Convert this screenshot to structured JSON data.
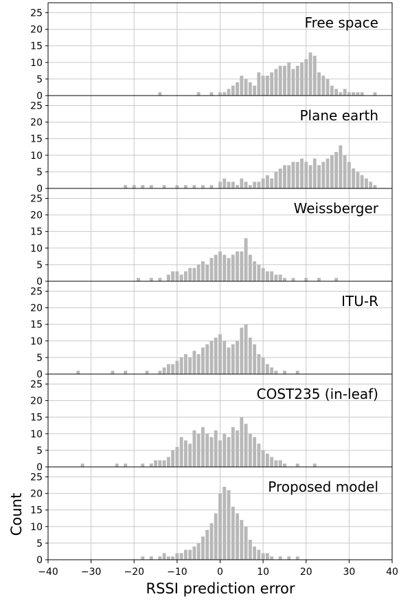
{
  "figure": {
    "xlabel": "RSSI prediction error",
    "ylabel": "Count"
  },
  "chart_data": [
    {
      "type": "bar",
      "title": "Free space",
      "xlim": [
        -40,
        40
      ],
      "ylim": [
        0,
        28
      ],
      "xticks": [
        -40,
        -30,
        -20,
        -10,
        0,
        10,
        20,
        30,
        40
      ],
      "yticks": [
        0,
        5,
        10,
        15,
        20,
        25
      ],
      "grid": true,
      "bar_color": "#b8b8b8",
      "x": [
        -14,
        -5,
        -2,
        0,
        1,
        2,
        3,
        4,
        5,
        6,
        7,
        8,
        9,
        10,
        11,
        12,
        13,
        14,
        15,
        16,
        17,
        18,
        19,
        20,
        21,
        22,
        23,
        24,
        25,
        26,
        27,
        28,
        29,
        30,
        31,
        32,
        33,
        36
      ],
      "values": [
        1,
        1,
        1,
        1,
        1,
        2,
        3,
        4,
        6,
        5,
        4,
        3,
        7,
        6,
        6,
        7,
        8,
        9,
        9,
        10,
        8,
        9,
        10,
        11,
        13,
        12,
        7,
        6,
        5,
        3,
        2,
        1,
        2,
        1,
        1,
        1,
        1,
        1
      ]
    },
    {
      "type": "bar",
      "title": "Plane earth",
      "xlim": [
        -40,
        40
      ],
      "ylim": [
        0,
        28
      ],
      "xticks": [
        -40,
        -30,
        -20,
        -10,
        0,
        10,
        20,
        30,
        40
      ],
      "yticks": [
        0,
        5,
        10,
        15,
        20,
        25
      ],
      "grid": true,
      "bar_color": "#b8b8b8",
      "x": [
        -22,
        -20,
        -18,
        -16,
        -13,
        -10,
        -8,
        -6,
        -4,
        -2,
        0,
        1,
        2,
        3,
        4,
        5,
        6,
        7,
        8,
        9,
        10,
        11,
        12,
        13,
        14,
        15,
        16,
        17,
        18,
        19,
        20,
        21,
        22,
        23,
        24,
        25,
        26,
        27,
        28,
        29,
        30,
        31,
        32,
        33,
        34,
        35,
        36
      ],
      "values": [
        1,
        1,
        1,
        1,
        1,
        1,
        1,
        1,
        1,
        1,
        2,
        3,
        2,
        2,
        1,
        3,
        2,
        1,
        2,
        2,
        3,
        4,
        3,
        5,
        6,
        7,
        7,
        8,
        8,
        9,
        8,
        7,
        9,
        7,
        8,
        9,
        10,
        11,
        13,
        10,
        8,
        6,
        5,
        4,
        3,
        2,
        1
      ]
    },
    {
      "type": "bar",
      "title": "Weissberger",
      "xlim": [
        -40,
        40
      ],
      "ylim": [
        0,
        28
      ],
      "xticks": [
        -40,
        -30,
        -20,
        -10,
        0,
        10,
        20,
        30,
        40
      ],
      "yticks": [
        0,
        5,
        10,
        15,
        20,
        25
      ],
      "grid": true,
      "bar_color": "#b8b8b8",
      "x": [
        -19,
        -16,
        -14,
        -12,
        -11,
        -10,
        -9,
        -8,
        -7,
        -6,
        -5,
        -4,
        -3,
        -2,
        -1,
        0,
        1,
        2,
        3,
        4,
        5,
        6,
        7,
        8,
        9,
        10,
        11,
        12,
        13,
        14,
        15,
        17,
        20,
        23,
        27
      ],
      "values": [
        1,
        1,
        1,
        2,
        3,
        3,
        2,
        3,
        4,
        4,
        5,
        6,
        5,
        7,
        8,
        9,
        8,
        7,
        8,
        9,
        9,
        13,
        8,
        6,
        5,
        4,
        3,
        3,
        2,
        2,
        1,
        1,
        1,
        1,
        1
      ]
    },
    {
      "type": "bar",
      "title": "ITU-R",
      "xlim": [
        -40,
        40
      ],
      "ylim": [
        0,
        28
      ],
      "xticks": [
        -40,
        -30,
        -20,
        -10,
        0,
        10,
        20,
        30,
        40
      ],
      "yticks": [
        0,
        5,
        10,
        15,
        20,
        25
      ],
      "grid": true,
      "bar_color": "#b8b8b8",
      "x": [
        -33,
        -25,
        -22,
        -17,
        -14,
        -13,
        -12,
        -11,
        -10,
        -9,
        -8,
        -7,
        -6,
        -5,
        -4,
        -3,
        -2,
        -1,
        0,
        1,
        2,
        3,
        4,
        5,
        6,
        7,
        8,
        9,
        10,
        11,
        12,
        13,
        15,
        18
      ],
      "values": [
        1,
        1,
        1,
        1,
        1,
        2,
        3,
        3,
        4,
        5,
        6,
        5,
        7,
        6,
        8,
        9,
        10,
        11,
        12,
        10,
        8,
        9,
        10,
        14,
        15,
        11,
        9,
        6,
        5,
        3,
        2,
        1,
        1,
        1
      ]
    },
    {
      "type": "bar",
      "title": "COST235 (in-leaf)",
      "xlim": [
        -40,
        40
      ],
      "ylim": [
        0,
        28
      ],
      "xticks": [
        -40,
        -30,
        -20,
        -10,
        0,
        10,
        20,
        30,
        40
      ],
      "yticks": [
        0,
        5,
        10,
        15,
        20,
        25
      ],
      "grid": true,
      "bar_color": "#b8b8b8",
      "x": [
        -32,
        -24,
        -22,
        -18,
        -16,
        -15,
        -14,
        -13,
        -12,
        -11,
        -10,
        -9,
        -8,
        -7,
        -6,
        -5,
        -4,
        -3,
        -2,
        -1,
        0,
        1,
        2,
        3,
        4,
        5,
        6,
        7,
        8,
        9,
        10,
        11,
        12,
        13,
        14,
        15,
        18,
        22
      ],
      "values": [
        1,
        1,
        1,
        1,
        1,
        2,
        2,
        2,
        3,
        5,
        6,
        9,
        8,
        7,
        11,
        10,
        12,
        10,
        9,
        11,
        8,
        10,
        9,
        12,
        11,
        15,
        13,
        10,
        9,
        7,
        5,
        4,
        3,
        2,
        2,
        1,
        1,
        1
      ]
    },
    {
      "type": "bar",
      "title": "Proposed model",
      "xlim": [
        -40,
        40
      ],
      "ylim": [
        0,
        28
      ],
      "xticks": [
        -40,
        -30,
        -20,
        -10,
        0,
        10,
        20,
        30,
        40
      ],
      "yticks": [
        0,
        5,
        10,
        15,
        20,
        25
      ],
      "grid": true,
      "bar_color": "#b8b8b8",
      "x": [
        -18,
        -16,
        -14,
        -13,
        -12,
        -11,
        -10,
        -9,
        -8,
        -7,
        -6,
        -5,
        -4,
        -3,
        -2,
        -1,
        0,
        1,
        2,
        3,
        4,
        5,
        6,
        7,
        8,
        9,
        10,
        11,
        12,
        14,
        16,
        18
      ],
      "values": [
        1,
        1,
        1,
        2,
        1,
        1,
        2,
        2,
        3,
        3,
        4,
        5,
        7,
        9,
        11,
        14,
        20,
        22,
        21,
        16,
        14,
        12,
        10,
        6,
        4,
        3,
        2,
        2,
        1,
        1,
        1,
        1
      ]
    }
  ]
}
